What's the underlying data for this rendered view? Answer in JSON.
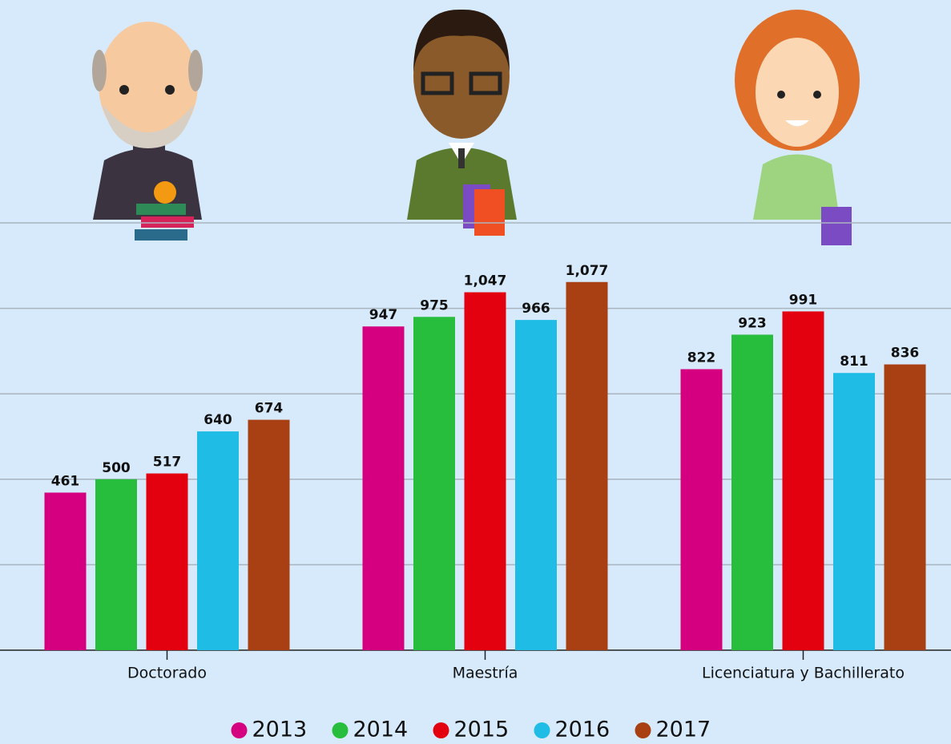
{
  "chart_data": {
    "type": "bar",
    "categories": [
      "Doctorado",
      "Maestría",
      "Licenciatura y Bachillerato"
    ],
    "series": [
      {
        "name": "2013",
        "color": "#d4007f",
        "values": [
          461,
          947,
          822
        ],
        "value_labels": [
          "461",
          "947",
          "822"
        ]
      },
      {
        "name": "2014",
        "color": "#27bd3d",
        "values": [
          500,
          975,
          923
        ],
        "value_labels": [
          "500",
          "975",
          "923"
        ]
      },
      {
        "name": "2015",
        "color": "#e3000f",
        "values": [
          517,
          1047,
          991
        ],
        "value_labels": [
          "517",
          "1,047",
          "991"
        ]
      },
      {
        "name": "2016",
        "color": "#1fbde6",
        "values": [
          640,
          966,
          811
        ],
        "value_labels": [
          "640",
          "966",
          "811"
        ]
      },
      {
        "name": "2017",
        "color": "#a84013",
        "values": [
          674,
          1077,
          836
        ],
        "value_labels": [
          "674",
          "1,077",
          "836"
        ]
      }
    ],
    "ylim": [
      0,
      1250
    ],
    "yticks": [
      0,
      250,
      500,
      750,
      1000,
      1250
    ],
    "grid": true,
    "legend": "bottom"
  }
}
